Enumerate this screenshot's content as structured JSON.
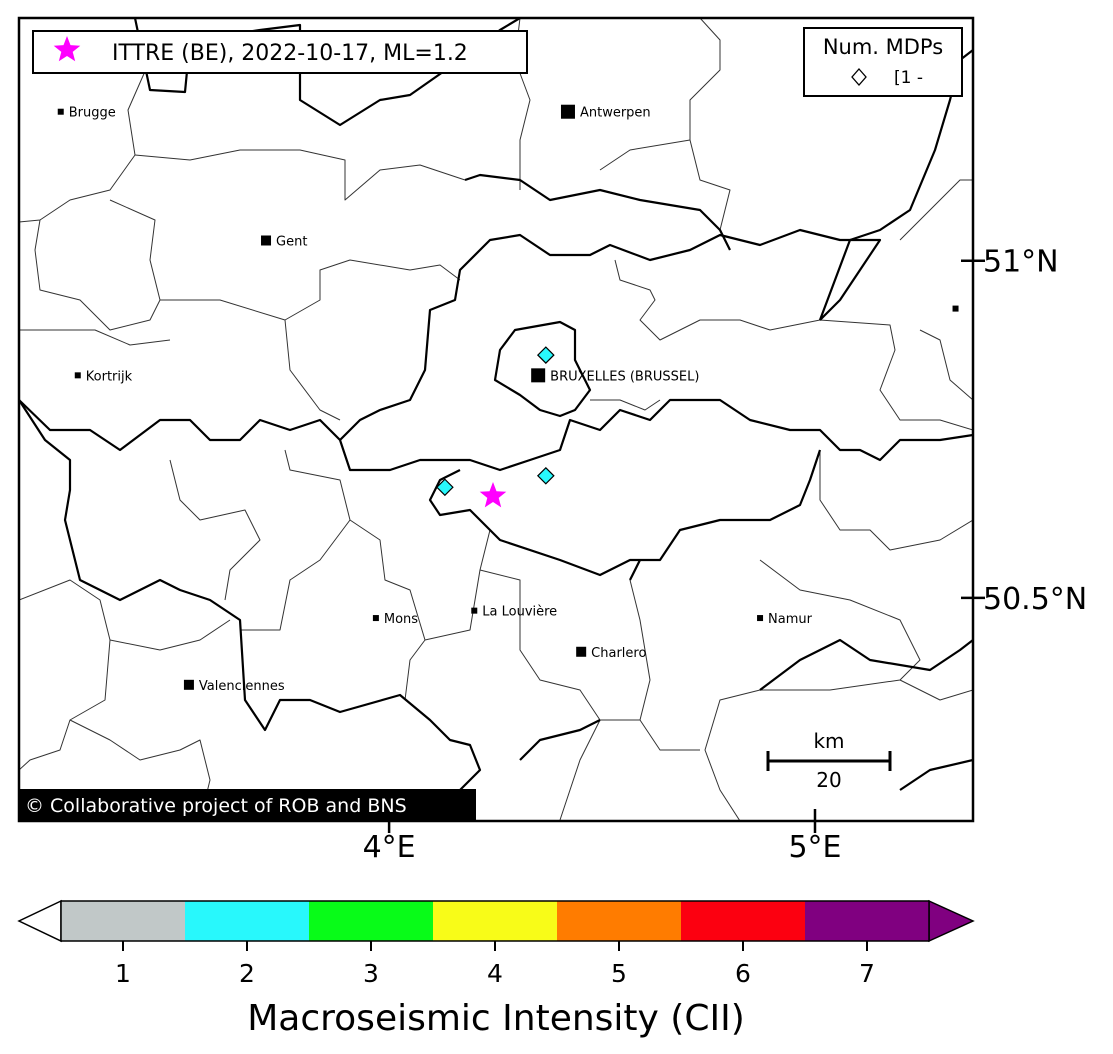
{
  "map": {
    "extent": {
      "lon": [
        3.131,
        5.371
      ],
      "lat": [
        50.169,
        51.36
      ]
    },
    "lon_ticks": [
      {
        "value": 4,
        "label": "4°E"
      },
      {
        "value": 5,
        "label": "5°E"
      }
    ],
    "lat_ticks": [
      {
        "value": 51,
        "label": "51°N"
      },
      {
        "value": 50.5,
        "label": "50.5°N"
      }
    ],
    "event": {
      "label": "ITTRE (BE), 2022-10-17, ML=1.2",
      "lon": 4.244,
      "lat": 50.651,
      "color": "#ff00ff",
      "icon": "star-icon"
    },
    "mdp_legend": {
      "title": "Num. MDPs",
      "entry": "[1 -",
      "icon": "diamond-icon"
    },
    "mdps": [
      {
        "lon": 4.368,
        "lat": 50.86,
        "intensity": 2
      },
      {
        "lon": 4.131,
        "lat": 50.664,
        "intensity": 2
      },
      {
        "lon": 4.368,
        "lat": 50.681,
        "intensity": 2
      }
    ],
    "cities": [
      {
        "name": "Brugge",
        "lon": 3.229,
        "lat": 51.221,
        "size": "small"
      },
      {
        "name": "Antwerpen",
        "lon": 4.42,
        "lat": 51.221,
        "size": "large"
      },
      {
        "name": "Gent",
        "lon": 3.711,
        "lat": 51.03,
        "size": "medium"
      },
      {
        "name": "Kortrijk",
        "lon": 3.269,
        "lat": 50.83,
        "size": "small"
      },
      {
        "name": "BRUXELLES (BRUSSEL)",
        "lon": 4.35,
        "lat": 50.83,
        "size": "large"
      },
      {
        "name": "Mons",
        "lon": 3.969,
        "lat": 50.47,
        "size": "small"
      },
      {
        "name": "La Louvière",
        "lon": 4.2,
        "lat": 50.481,
        "size": "small"
      },
      {
        "name": "Charlero",
        "lon": 4.451,
        "lat": 50.42,
        "size": "medium"
      },
      {
        "name": "Namur",
        "lon": 4.871,
        "lat": 50.47,
        "size": "small"
      },
      {
        "name": "Valenciennes",
        "lon": 3.53,
        "lat": 50.371,
        "size": "medium"
      },
      {
        "name": "",
        "lon": 5.33,
        "lat": 50.929,
        "size": "small"
      }
    ],
    "scale_bar": {
      "unit": "km",
      "value": "20"
    },
    "copyright": "© Collaborative project of ROB and BNS"
  },
  "colorbar": {
    "label": "Macroseismic Intensity (CII)",
    "ticks": [
      "1",
      "2",
      "3",
      "4",
      "5",
      "6",
      "7"
    ],
    "colors": [
      "#c1c8c8",
      "#28f8fc",
      "#08fc18",
      "#f8fc18",
      "#ff7c00",
      "#fc0010",
      "#800080"
    ],
    "extend_low_color": "#ffffff",
    "extend_high_color": "#800080"
  }
}
